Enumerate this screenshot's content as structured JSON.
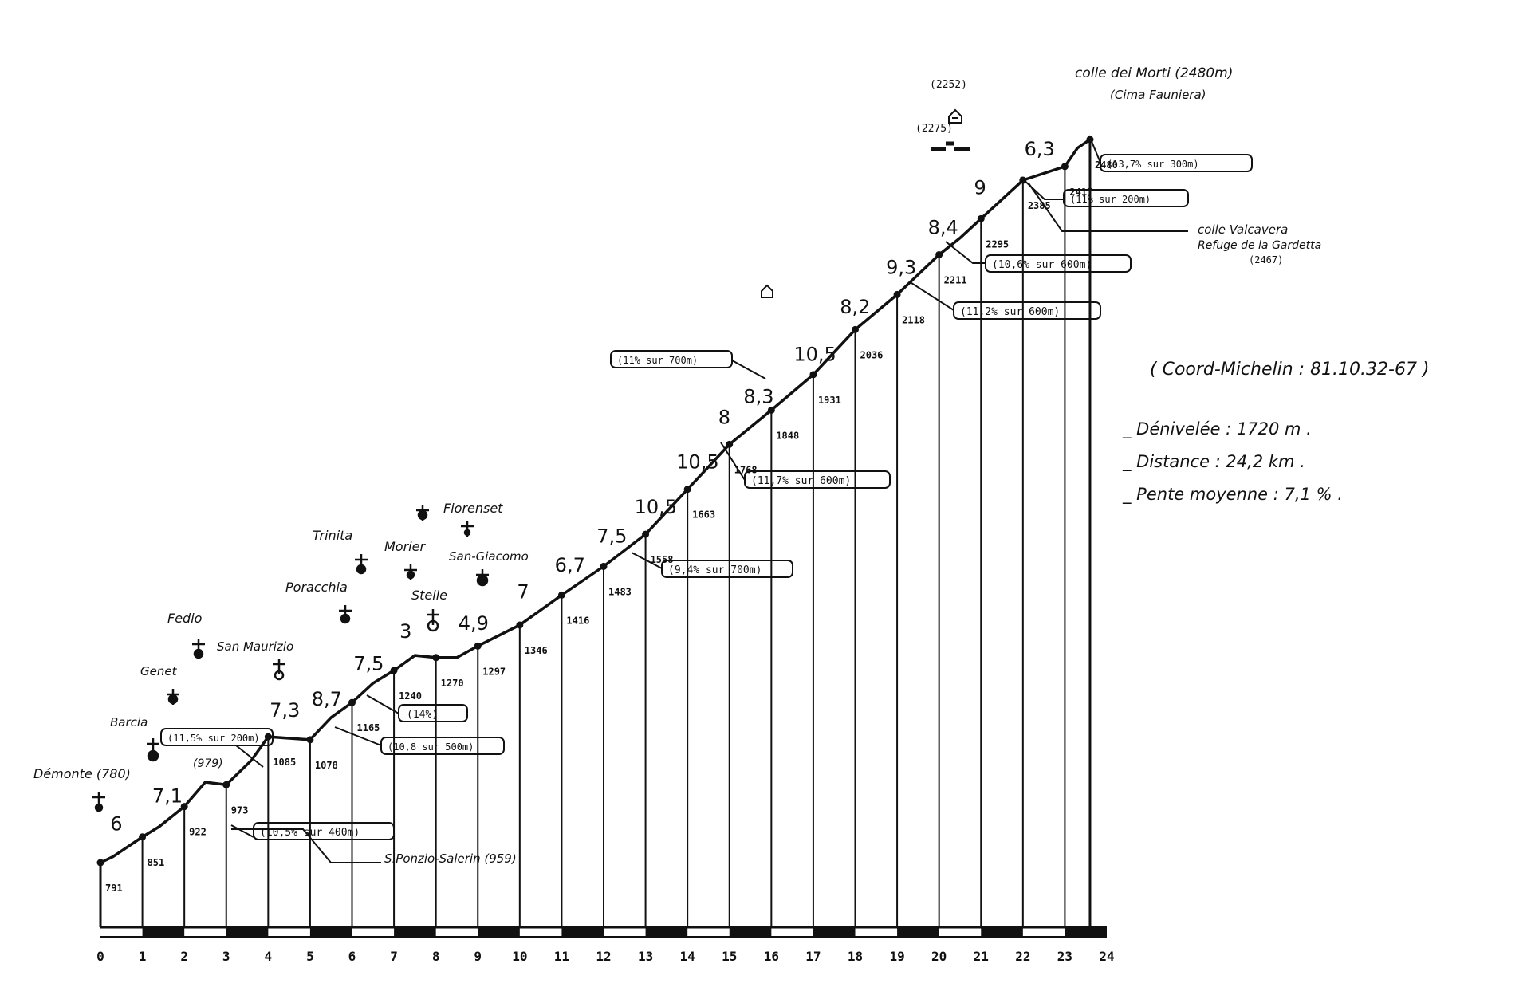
{
  "chart_data": {
    "type": "area",
    "title": "colle dei Morti (2480m)",
    "subtitle": "(Cima Fauniera)",
    "xlim": [
      0,
      24
    ],
    "x_ticks": [
      "0",
      "1",
      "2",
      "3",
      "4",
      "5",
      "6",
      "7",
      "8",
      "9",
      "10",
      "11",
      "12",
      "13",
      "14",
      "15",
      "16",
      "17",
      "18",
      "19",
      "20",
      "21",
      "22",
      "23",
      "24"
    ],
    "profile": [
      {
        "x": 0,
        "y": 791
      },
      {
        "x": 0.3,
        "y": 805
      },
      {
        "x": 1,
        "y": 851
      },
      {
        "x": 1.4,
        "y": 875
      },
      {
        "x": 2,
        "y": 922
      },
      {
        "x": 2.5,
        "y": 979
      },
      {
        "x": 3,
        "y": 973
      },
      {
        "x": 3.6,
        "y": 1030
      },
      {
        "x": 4,
        "y": 1085
      },
      {
        "x": 5,
        "y": 1078
      },
      {
        "x": 5.5,
        "y": 1130
      },
      {
        "x": 6,
        "y": 1165
      },
      {
        "x": 6.5,
        "y": 1210
      },
      {
        "x": 7,
        "y": 1240
      },
      {
        "x": 7.5,
        "y": 1275
      },
      {
        "x": 8,
        "y": 1270
      },
      {
        "x": 8.5,
        "y": 1270
      },
      {
        "x": 9,
        "y": 1297
      },
      {
        "x": 10,
        "y": 1346
      },
      {
        "x": 11,
        "y": 1416
      },
      {
        "x": 12,
        "y": 1483
      },
      {
        "x": 13,
        "y": 1558
      },
      {
        "x": 14,
        "y": 1663
      },
      {
        "x": 15,
        "y": 1768
      },
      {
        "x": 16,
        "y": 1848
      },
      {
        "x": 17,
        "y": 1931
      },
      {
        "x": 18,
        "y": 2036
      },
      {
        "x": 19,
        "y": 2118
      },
      {
        "x": 20,
        "y": 2211
      },
      {
        "x": 20.5,
        "y": 2250
      },
      {
        "x": 21,
        "y": 2295
      },
      {
        "x": 22,
        "y": 2385
      },
      {
        "x": 23,
        "y": 2417
      },
      {
        "x": 23.3,
        "y": 2460
      },
      {
        "x": 23.6,
        "y": 2480
      }
    ],
    "elevation_labels": [
      {
        "x": 0,
        "y": 791,
        "label": "791"
      },
      {
        "x": 1,
        "y": 851,
        "label": "851"
      },
      {
        "x": 2,
        "y": 922,
        "label": "922"
      },
      {
        "x": 3,
        "y": 973,
        "label": "973"
      },
      {
        "x": 4,
        "y": 1085,
        "label": "1085"
      },
      {
        "x": 5,
        "y": 1078,
        "label": "1078"
      },
      {
        "x": 6,
        "y": 1165,
        "label": "1165"
      },
      {
        "x": 7,
        "y": 1240,
        "label": "1240"
      },
      {
        "x": 8,
        "y": 1270,
        "label": "1270"
      },
      {
        "x": 9,
        "y": 1297,
        "label": "1297"
      },
      {
        "x": 10,
        "y": 1346,
        "label": "1346"
      },
      {
        "x": 11,
        "y": 1416,
        "label": "1416"
      },
      {
        "x": 12,
        "y": 1483,
        "label": "1483"
      },
      {
        "x": 13,
        "y": 1558,
        "label": "1558"
      },
      {
        "x": 14,
        "y": 1663,
        "label": "1663"
      },
      {
        "x": 15,
        "y": 1768,
        "label": "1768"
      },
      {
        "x": 16,
        "y": 1848,
        "label": "1848"
      },
      {
        "x": 17,
        "y": 1931,
        "label": "1931"
      },
      {
        "x": 18,
        "y": 2036,
        "label": "2036"
      },
      {
        "x": 19,
        "y": 2118,
        "label": "2118"
      },
      {
        "x": 20,
        "y": 2211,
        "label": "2211"
      },
      {
        "x": 21,
        "y": 2295,
        "label": "2295"
      },
      {
        "x": 22,
        "y": 2385,
        "label": "2385"
      },
      {
        "x": 23,
        "y": 2417,
        "label": "2417"
      },
      {
        "x": 23.6,
        "y": 2480,
        "label": "2480"
      }
    ],
    "gradients": [
      {
        "x": 0.5,
        "label": "6"
      },
      {
        "x": 1.5,
        "label": "7,1"
      },
      {
        "x": 4.3,
        "label": "7,3"
      },
      {
        "x": 5.3,
        "label": "8,7"
      },
      {
        "x": 6.3,
        "label": "7,5"
      },
      {
        "x": 7.4,
        "label": "3"
      },
      {
        "x": 8.8,
        "label": "4,9"
      },
      {
        "x": 10.2,
        "label": "7"
      },
      {
        "x": 11.1,
        "label": "6,7"
      },
      {
        "x": 12.1,
        "label": "7,5"
      },
      {
        "x": 13,
        "label": "10,5"
      },
      {
        "x": 14,
        "label": "10,5"
      },
      {
        "x": 15,
        "label": "8"
      },
      {
        "x": 15.6,
        "label": "8,3"
      },
      {
        "x": 16.8,
        "label": "10,5"
      },
      {
        "x": 17.9,
        "label": "8,2"
      },
      {
        "x": 19,
        "label": "9,3"
      },
      {
        "x": 20,
        "label": "8,4"
      },
      {
        "x": 21.1,
        "label": "9"
      },
      {
        "x": 22.3,
        "label": "6,3"
      }
    ],
    "places": [
      {
        "name": "Démonte (780)"
      },
      {
        "name": "Barcia"
      },
      {
        "name": "Genet"
      },
      {
        "name": "Fedio"
      },
      {
        "name": "San Maurizio"
      },
      {
        "name": "Poracchia"
      },
      {
        "name": "Trinita"
      },
      {
        "name": "Morier"
      },
      {
        "name": "Stelle"
      },
      {
        "name": "Fiorenset"
      },
      {
        "name": "San-Giacomo"
      },
      {
        "name": "S.Ponzio-Salerin (959)"
      },
      {
        "name": "(979)"
      },
      {
        "name": "(2252)"
      },
      {
        "name": "(2275)"
      },
      {
        "name": "colle Valcavera"
      },
      {
        "name": "Refuge de la Gardetta"
      },
      {
        "name": "(2467)"
      }
    ],
    "notes": [
      "(11,5% sur 200m)",
      "(10,5% sur 400m)",
      "(14%)",
      "(10,8 sur 500m)",
      "(11% sur 700m)",
      "(9,4% sur 700m)",
      "(11,7% sur 600m)",
      "(11,2% sur 600m)",
      "(10,6% sur 600m)",
      "(11% sur 200m)",
      "(13,7% sur 300m)"
    ],
    "info": {
      "coord": "( Coord-Michelin : 81.10.32-67 )",
      "denivelee": "_ Dénivelée : 1720 m .",
      "distance": "_ Distance : 24,2 km .",
      "pente": "_ Pente moyenne : 7,1 % ."
    }
  }
}
